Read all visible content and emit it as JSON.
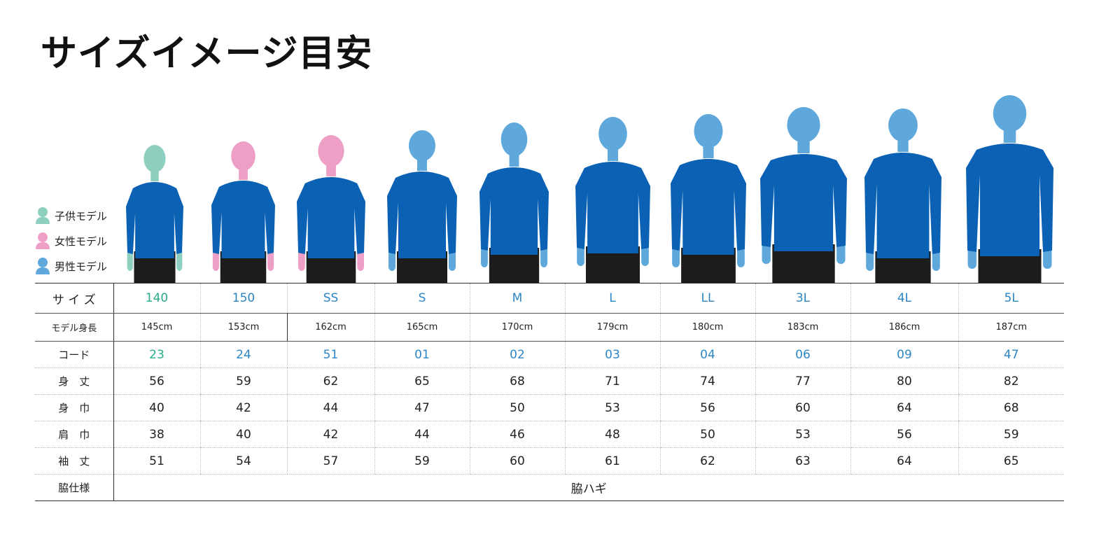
{
  "title": "サイズイメージ目安",
  "colors": {
    "kid": "#8ecfbf",
    "female": "#ee9fc6",
    "male": "#5fa8dc",
    "shirt": "#0b62b5",
    "kid_text": "#27ab8a",
    "male_text": "#2d86c4"
  },
  "legend": [
    {
      "label": "子供モデル",
      "type": "kid",
      "icon": "person-icon"
    },
    {
      "label": "女性モデル",
      "type": "female",
      "icon": "person-icon"
    },
    {
      "label": "男性モデル",
      "type": "male",
      "icon": "person-icon"
    }
  ],
  "table": {
    "row_labels": {
      "size": "サ イ ズ",
      "height": "モデル身長",
      "code": "コード",
      "length": "身　丈",
      "body_width": "身　巾",
      "shoulder": "肩　巾",
      "sleeve": "袖　丈",
      "side": "脇仕様"
    },
    "columns": [
      {
        "size": "140",
        "model": "kid",
        "height": "145cm",
        "code": "23",
        "length": "56",
        "body_width": "40",
        "shoulder": "38",
        "sleeve": "51"
      },
      {
        "size": "150",
        "model": "female",
        "height": "153cm",
        "code": "24",
        "length": "59",
        "body_width": "42",
        "shoulder": "40",
        "sleeve": "54"
      },
      {
        "size": "SS",
        "model": "female",
        "height": "162cm",
        "code": "51",
        "length": "62",
        "body_width": "44",
        "shoulder": "42",
        "sleeve": "57"
      },
      {
        "size": "S",
        "model": "male",
        "height": "165cm",
        "code": "01",
        "length": "65",
        "body_width": "47",
        "shoulder": "44",
        "sleeve": "59"
      },
      {
        "size": "M",
        "model": "male",
        "height": "170cm",
        "code": "02",
        "length": "68",
        "body_width": "50",
        "shoulder": "46",
        "sleeve": "60"
      },
      {
        "size": "L",
        "model": "male",
        "height": "179cm",
        "code": "03",
        "length": "71",
        "body_width": "53",
        "shoulder": "48",
        "sleeve": "61"
      },
      {
        "size": "LL",
        "model": "male",
        "height": "180cm",
        "code": "04",
        "length": "74",
        "body_width": "56",
        "shoulder": "50",
        "sleeve": "62"
      },
      {
        "size": "3L",
        "model": "male",
        "height": "183cm",
        "code": "06",
        "length": "77",
        "body_width": "60",
        "shoulder": "53",
        "sleeve": "63"
      },
      {
        "size": "4L",
        "model": "male",
        "height": "186cm",
        "code": "09",
        "length": "80",
        "body_width": "64",
        "shoulder": "56",
        "sleeve": "64"
      },
      {
        "size": "5L",
        "model": "male",
        "height": "187cm",
        "code": "47",
        "length": "82",
        "body_width": "68",
        "shoulder": "59",
        "sleeve": "65"
      }
    ],
    "side_spec": "脇ハギ"
  }
}
